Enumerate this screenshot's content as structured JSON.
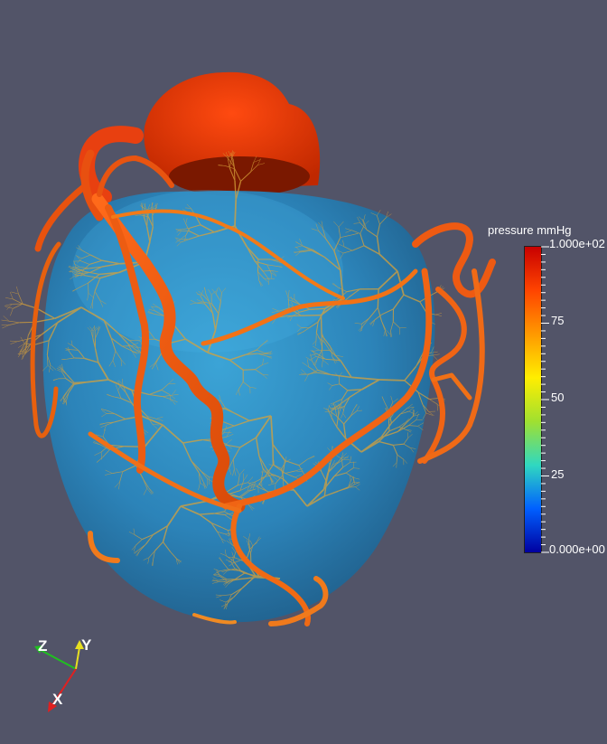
{
  "viewer": {
    "background_color": "#525468"
  },
  "scene": {
    "object": "coronary vessel tree on heart",
    "myocardium_color": "#2f8fc4",
    "vessel_color": "#ee5a10",
    "microvessel_color": "#d8a23a",
    "atrium_color": "#e83000"
  },
  "colorbar": {
    "title": "pressure mmHg",
    "max_label": "1.000e+02",
    "min_label": "0.000e+00",
    "tick_labels": [
      "75",
      "50",
      "25"
    ],
    "colormap": [
      "#c80000",
      "#ff4400",
      "#ff9900",
      "#ffee00",
      "#a0e030",
      "#30d8c0",
      "#0060ff",
      "#0000a0"
    ]
  },
  "orientation_axes": {
    "x_label": "X",
    "y_label": "Y",
    "z_label": "Z",
    "x_color": "#e02020",
    "y_color": "#e8e020",
    "z_color": "#20c020"
  }
}
